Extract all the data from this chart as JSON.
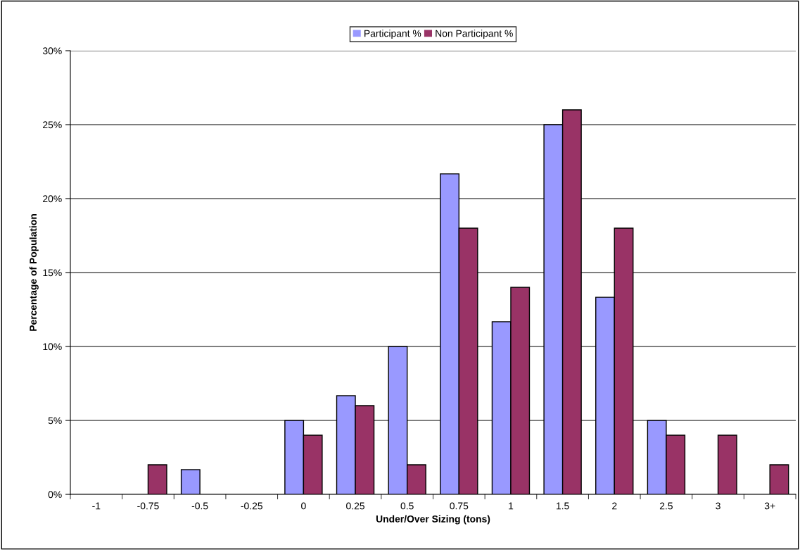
{
  "chart_data": {
    "type": "bar",
    "xlabel": "Under/Over Sizing (tons)",
    "ylabel": "Percentage of Population",
    "categories": [
      "-1",
      "-0.75",
      "-0.5",
      "-0.25",
      "0",
      "0.25",
      "0.5",
      "0.75",
      "1",
      "1.5",
      "2",
      "2.5",
      "3",
      "3+"
    ],
    "series": [
      {
        "name": "Participant %",
        "color": "#9999ff",
        "values": [
          0,
          0,
          1.67,
          0,
          5,
          6.67,
          10,
          21.67,
          11.67,
          25,
          13.33,
          5,
          0,
          0
        ]
      },
      {
        "name": "Non Participant %",
        "color": "#993366",
        "values": [
          0,
          2,
          0,
          0,
          4,
          6,
          2,
          18,
          14,
          26,
          18,
          4,
          4,
          2
        ]
      }
    ],
    "ylim": [
      0,
      30
    ],
    "yticks": [
      {
        "value": 0,
        "label": "0%"
      },
      {
        "value": 5,
        "label": "5%"
      },
      {
        "value": 10,
        "label": "10%"
      },
      {
        "value": 15,
        "label": "15%"
      },
      {
        "value": 20,
        "label": "20%"
      },
      {
        "value": 25,
        "label": "25%"
      },
      {
        "value": 30,
        "label": "30%"
      }
    ],
    "grid": "y",
    "legend": "top"
  }
}
